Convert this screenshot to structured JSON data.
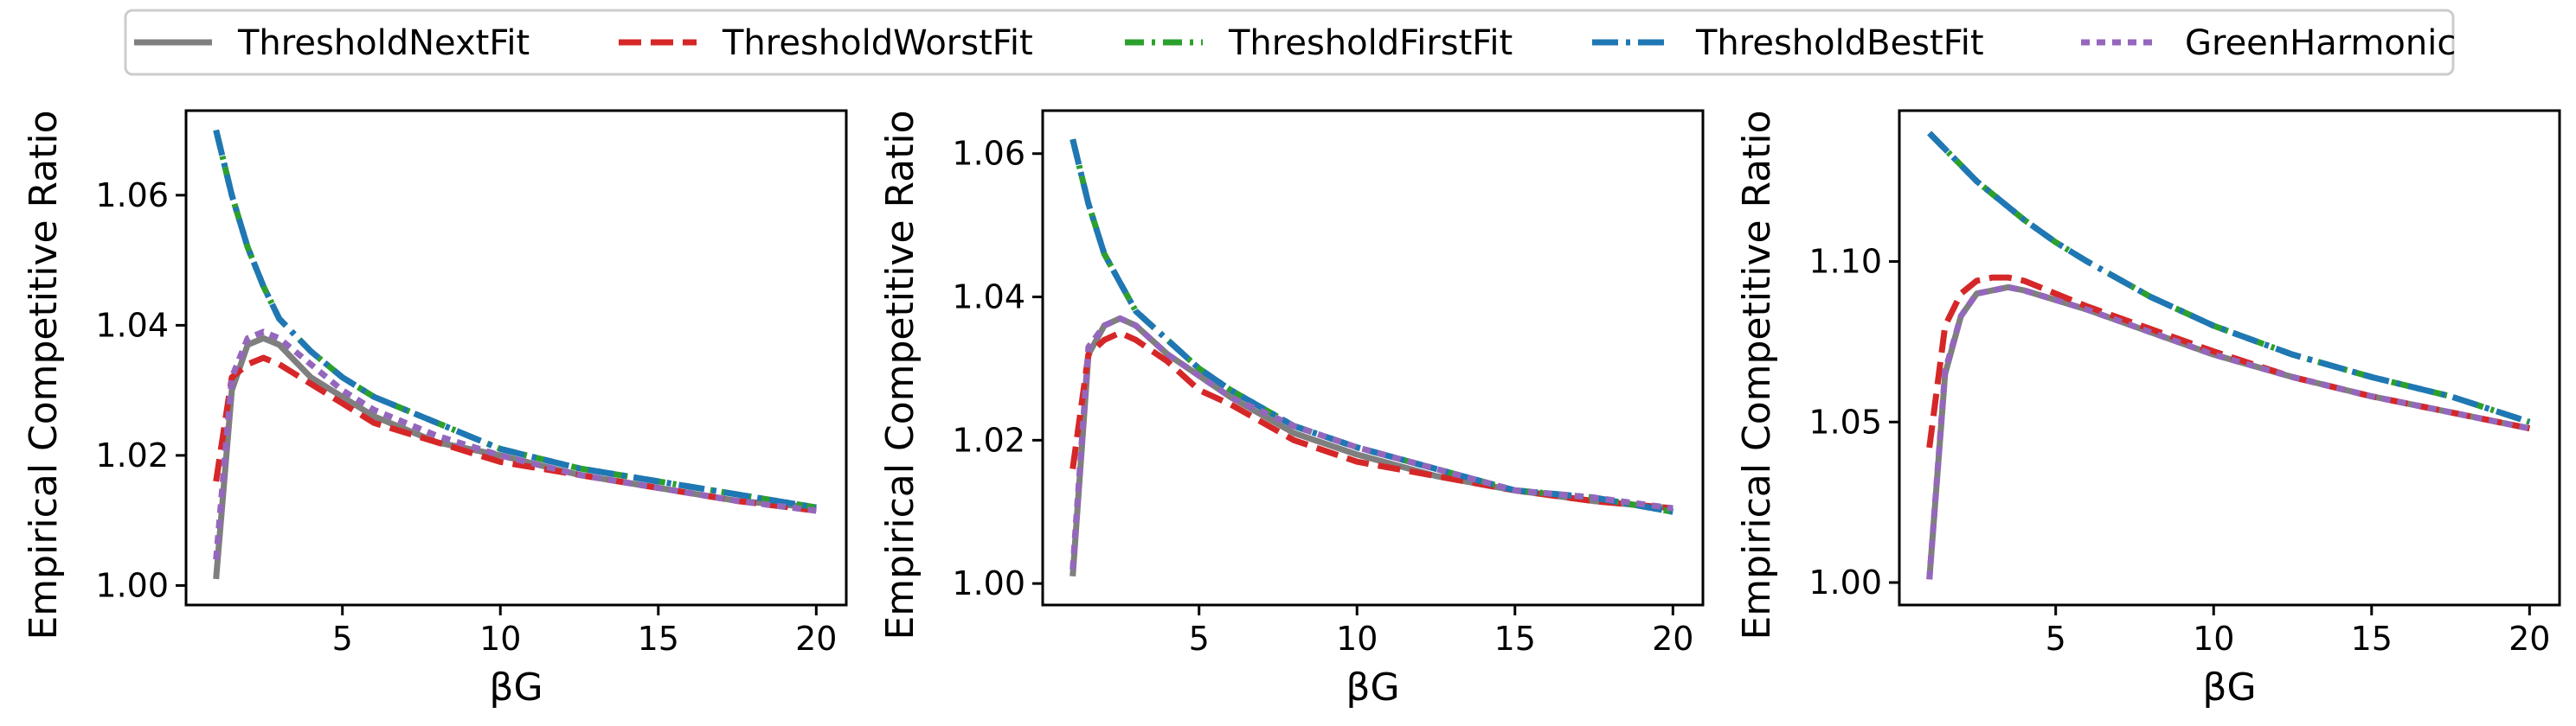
{
  "legend": {
    "placement": "top-center",
    "items": [
      {
        "label": "ThresholdNextFit",
        "color": "#7f7f7f",
        "dash": "solid"
      },
      {
        "label": "ThresholdWorstFit",
        "color": "#d62728",
        "dash": "dashed"
      },
      {
        "label": "ThresholdFirstFit",
        "color": "#2ca02c",
        "dash": "dashdot"
      },
      {
        "label": "ThresholdBestFit",
        "color": "#1f77b4",
        "dash": "dashdot-long"
      },
      {
        "label": "GreenHarmonic",
        "color": "#9467bd",
        "dash": "dotted"
      }
    ]
  },
  "chart_data": [
    {
      "type": "line",
      "xlabel": "βG",
      "ylabel": "Empirical Competitive Ratio",
      "xlim": [
        0.05,
        20.95
      ],
      "ylim": [
        0.997,
        1.073
      ],
      "xticks": [
        5,
        10,
        15,
        20
      ],
      "yticks": [
        1.0,
        1.02,
        1.04,
        1.06
      ],
      "ytick_labels": [
        "1.00",
        "1.02",
        "1.04",
        "1.06"
      ],
      "grid": false,
      "x": [
        1,
        1.5,
        2,
        2.5,
        3,
        4,
        5,
        6,
        8,
        10,
        12.5,
        15,
        17.5,
        20
      ],
      "series": [
        {
          "name": "ThresholdNextFit",
          "values": [
            1.001,
            1.03,
            1.037,
            1.038,
            1.037,
            1.032,
            1.029,
            1.026,
            1.022,
            1.02,
            1.017,
            1.015,
            1.013,
            1.012
          ]
        },
        {
          "name": "ThresholdWorstFit",
          "values": [
            1.016,
            1.032,
            1.034,
            1.035,
            1.034,
            1.031,
            1.028,
            1.025,
            1.022,
            1.019,
            1.017,
            1.015,
            1.013,
            1.0115
          ]
        },
        {
          "name": "ThresholdFirstFit",
          "values": [
            1.07,
            1.06,
            1.052,
            1.046,
            1.041,
            1.036,
            1.032,
            1.029,
            1.025,
            1.021,
            1.018,
            1.016,
            1.014,
            1.012
          ]
        },
        {
          "name": "ThresholdBestFit",
          "values": [
            1.07,
            1.06,
            1.052,
            1.046,
            1.041,
            1.036,
            1.032,
            1.029,
            1.025,
            1.021,
            1.018,
            1.016,
            1.014,
            1.012
          ]
        },
        {
          "name": "GreenHarmonic",
          "values": [
            1.004,
            1.032,
            1.038,
            1.039,
            1.038,
            1.034,
            1.03,
            1.027,
            1.023,
            1.02,
            1.017,
            1.015,
            1.013,
            1.0115
          ]
        }
      ]
    },
    {
      "type": "line",
      "xlabel": "βG",
      "ylabel": "Empirical Competitive Ratio",
      "xlim": [
        0.05,
        20.95
      ],
      "ylim": [
        0.997,
        1.066
      ],
      "xticks": [
        5,
        10,
        15,
        20
      ],
      "yticks": [
        1.0,
        1.02,
        1.04,
        1.06
      ],
      "ytick_labels": [
        "1.00",
        "1.02",
        "1.04",
        "1.06"
      ],
      "grid": false,
      "x": [
        1,
        1.5,
        2,
        2.5,
        3,
        4,
        5,
        6,
        8,
        10,
        12.5,
        15,
        17.5,
        20
      ],
      "series": [
        {
          "name": "ThresholdNextFit",
          "values": [
            1.001,
            1.032,
            1.036,
            1.037,
            1.036,
            1.032,
            1.029,
            1.026,
            1.021,
            1.018,
            1.015,
            1.013,
            1.0115,
            1.0105
          ]
        },
        {
          "name": "ThresholdWorstFit",
          "values": [
            1.016,
            1.032,
            1.034,
            1.035,
            1.034,
            1.031,
            1.027,
            1.025,
            1.02,
            1.017,
            1.015,
            1.013,
            1.0115,
            1.0105
          ]
        },
        {
          "name": "ThresholdFirstFit",
          "values": [
            1.062,
            1.053,
            1.046,
            1.042,
            1.038,
            1.034,
            1.03,
            1.027,
            1.022,
            1.019,
            1.016,
            1.013,
            1.012,
            1.01
          ]
        },
        {
          "name": "ThresholdBestFit",
          "values": [
            1.062,
            1.053,
            1.046,
            1.042,
            1.038,
            1.034,
            1.03,
            1.027,
            1.022,
            1.019,
            1.016,
            1.013,
            1.012,
            1.01
          ]
        },
        {
          "name": "GreenHarmonic",
          "values": [
            1.002,
            1.033,
            1.036,
            1.037,
            1.036,
            1.032,
            1.029,
            1.026,
            1.022,
            1.019,
            1.016,
            1.013,
            1.012,
            1.0105
          ]
        }
      ]
    },
    {
      "type": "line",
      "xlabel": "βG",
      "ylabel": "Empirical Competitive Ratio",
      "xlim": [
        0.05,
        20.95
      ],
      "ylim": [
        0.993,
        1.147
      ],
      "xticks": [
        5,
        10,
        15,
        20
      ],
      "yticks": [
        1.0,
        1.05,
        1.1
      ],
      "ytick_labels": [
        "1.00",
        "1.05",
        "1.10"
      ],
      "grid": false,
      "x": [
        1,
        1.5,
        2,
        2.5,
        3,
        3.5,
        4,
        5,
        6,
        8,
        10,
        12.5,
        15,
        17.5,
        20
      ],
      "series": [
        {
          "name": "ThresholdNextFit",
          "values": [
            1.001,
            1.065,
            1.083,
            1.09,
            1.091,
            1.092,
            1.091,
            1.088,
            1.085,
            1.078,
            1.071,
            1.064,
            1.058,
            1.053,
            1.048
          ]
        },
        {
          "name": "ThresholdWorstFit",
          "values": [
            1.042,
            1.08,
            1.09,
            1.094,
            1.095,
            1.095,
            1.094,
            1.09,
            1.086,
            1.079,
            1.072,
            1.064,
            1.058,
            1.053,
            1.048
          ]
        },
        {
          "name": "ThresholdFirstFit",
          "values": [
            1.14,
            1.135,
            1.13,
            1.125,
            1.121,
            1.117,
            1.113,
            1.106,
            1.1,
            1.089,
            1.08,
            1.071,
            1.064,
            1.058,
            1.05
          ]
        },
        {
          "name": "ThresholdBestFit",
          "values": [
            1.14,
            1.135,
            1.13,
            1.125,
            1.121,
            1.117,
            1.113,
            1.106,
            1.1,
            1.089,
            1.08,
            1.071,
            1.064,
            1.058,
            1.05
          ]
        },
        {
          "name": "GreenHarmonic",
          "values": [
            1.001,
            1.066,
            1.083,
            1.09,
            1.091,
            1.092,
            1.091,
            1.088,
            1.085,
            1.078,
            1.071,
            1.064,
            1.058,
            1.053,
            1.048
          ]
        }
      ]
    }
  ]
}
